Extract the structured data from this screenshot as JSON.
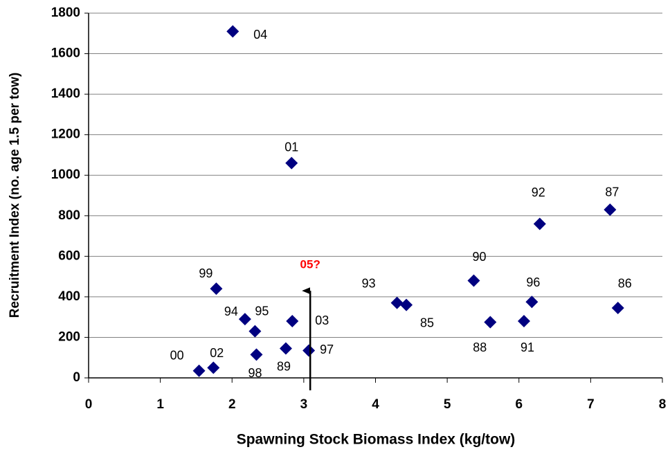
{
  "chart_data": {
    "type": "scatter",
    "x_label": "Spawning Stock Biomass Index (kg/tow)",
    "y_label": "Recruitment Index (no. age 1.5 per tow)",
    "series": [
      {
        "color": "#000080",
        "labels": [
          "04",
          "01",
          "92",
          "87",
          "99",
          "90",
          "93",
          "85",
          "96",
          "86",
          "94",
          "95",
          "03",
          "88",
          "91",
          "89",
          "97",
          "98",
          "02",
          "00"
        ],
        "x": [
          2.01,
          2.83,
          6.29,
          7.27,
          1.78,
          5.37,
          4.3,
          4.43,
          6.18,
          7.38,
          2.18,
          2.32,
          2.84,
          5.6,
          6.07,
          2.75,
          3.07,
          2.34,
          1.74,
          1.54
        ],
        "values": [
          1710,
          1060,
          760,
          830,
          440,
          480,
          370,
          360,
          375,
          345,
          290,
          230,
          280,
          275,
          280,
          145,
          135,
          115,
          50,
          35
        ]
      }
    ],
    "annotation": {
      "text": "05?",
      "x": 3.09,
      "y": 430,
      "color": "#ff0000"
    },
    "xlim": [
      0,
      8
    ],
    "xticks": [
      0,
      1,
      2,
      3,
      4,
      5,
      6,
      7,
      8
    ],
    "ylim": [
      0,
      1800
    ],
    "yticks": [
      0,
      200,
      400,
      600,
      800,
      1000,
      1200,
      1400,
      1600,
      1800
    ],
    "grid": true
  }
}
